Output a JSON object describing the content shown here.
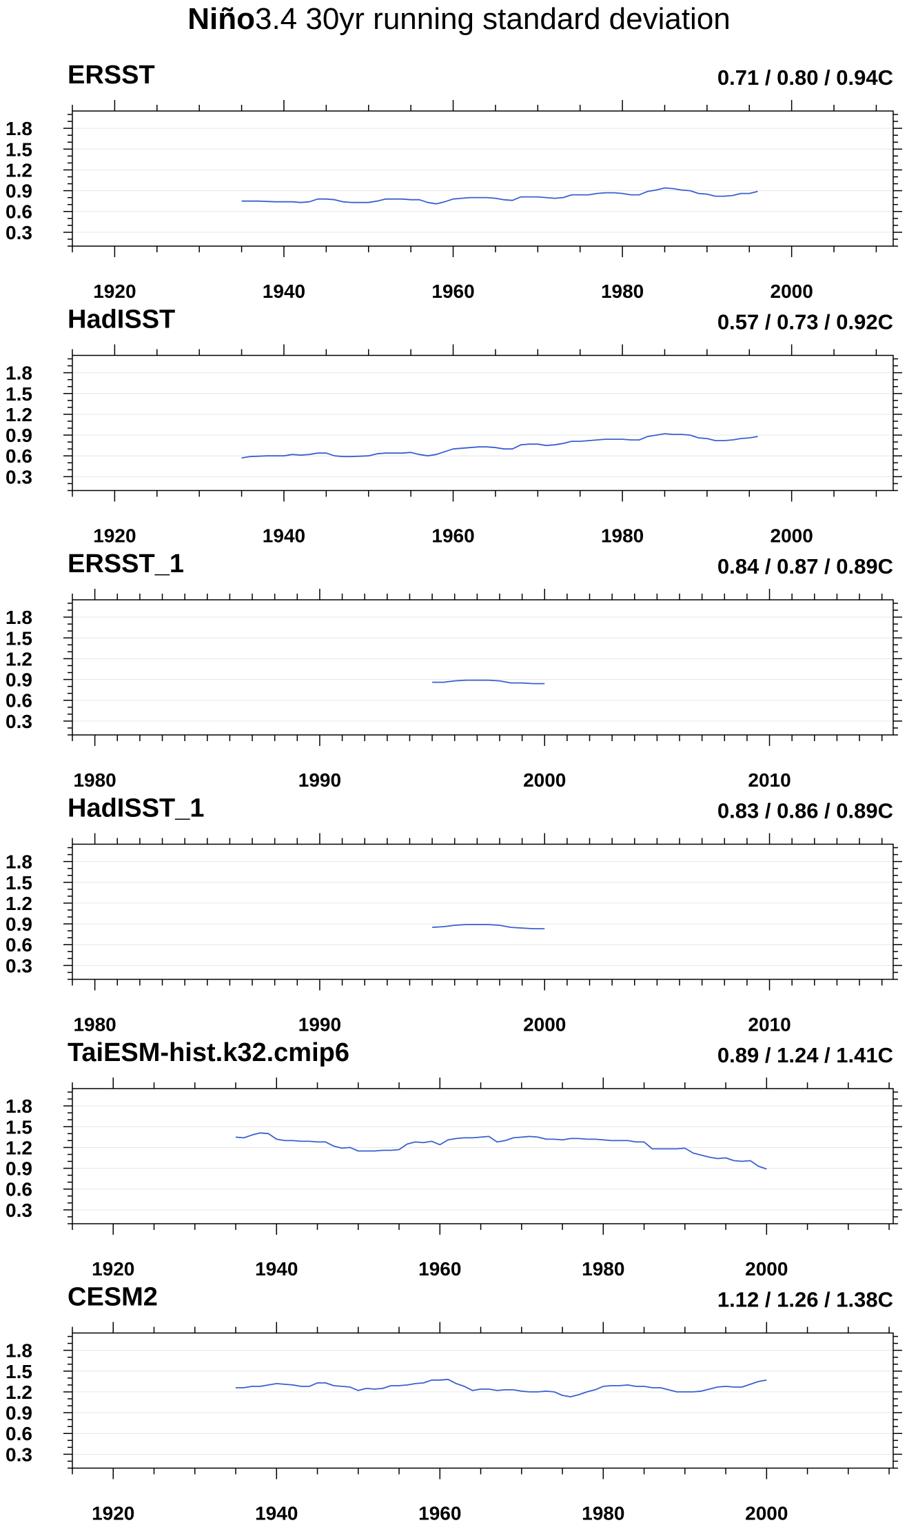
{
  "figure_title": "Niño3.4 30yr running standard deviation",
  "colors": {
    "line": "#3a5fd0",
    "frame": "#000000",
    "grid": "#e6e6e6"
  },
  "chart_data": [
    {
      "type": "line",
      "title": "ERSST",
      "stats": "0.71 / 0.80 / 0.94C",
      "xlim": [
        1915,
        2012
      ],
      "xticks": [
        1920,
        1940,
        1960,
        1980,
        2000
      ],
      "xminor": 5,
      "ylim": [
        0.1,
        2.05
      ],
      "yticks": [
        0.3,
        0.6,
        0.9,
        1.2,
        1.5,
        1.8
      ],
      "grid": true,
      "x": [
        1935,
        1937,
        1939,
        1941,
        1942,
        1943,
        1944,
        1945,
        1946,
        1947,
        1948,
        1949,
        1950,
        1951,
        1952,
        1953,
        1954,
        1955,
        1956,
        1957,
        1958,
        1959,
        1960,
        1961,
        1962,
        1963,
        1964,
        1965,
        1966,
        1967,
        1968,
        1969,
        1970,
        1971,
        1972,
        1973,
        1974,
        1975,
        1976,
        1977,
        1978,
        1979,
        1980,
        1981,
        1982,
        1983,
        1984,
        1985,
        1986,
        1987,
        1988,
        1989,
        1990,
        1991,
        1992,
        1993,
        1994,
        1995,
        1996
      ],
      "y": [
        0.75,
        0.75,
        0.74,
        0.74,
        0.73,
        0.74,
        0.78,
        0.78,
        0.77,
        0.74,
        0.73,
        0.73,
        0.73,
        0.75,
        0.78,
        0.78,
        0.78,
        0.77,
        0.77,
        0.73,
        0.71,
        0.74,
        0.78,
        0.79,
        0.8,
        0.8,
        0.8,
        0.79,
        0.77,
        0.76,
        0.81,
        0.81,
        0.81,
        0.8,
        0.79,
        0.8,
        0.84,
        0.84,
        0.84,
        0.86,
        0.87,
        0.87,
        0.86,
        0.84,
        0.84,
        0.89,
        0.91,
        0.94,
        0.93,
        0.91,
        0.9,
        0.86,
        0.85,
        0.82,
        0.82,
        0.83,
        0.86,
        0.86,
        0.89
      ]
    },
    {
      "type": "line",
      "title": "HadISST",
      "stats": "0.57 / 0.73 / 0.92C",
      "xlim": [
        1915,
        2012
      ],
      "xticks": [
        1920,
        1940,
        1960,
        1980,
        2000
      ],
      "xminor": 5,
      "ylim": [
        0.1,
        2.05
      ],
      "yticks": [
        0.3,
        0.6,
        0.9,
        1.2,
        1.5,
        1.8
      ],
      "grid": true,
      "x": [
        1935,
        1936,
        1938,
        1940,
        1941,
        1942,
        1943,
        1944,
        1945,
        1946,
        1947,
        1948,
        1950,
        1951,
        1952,
        1953,
        1954,
        1955,
        1956,
        1957,
        1958,
        1959,
        1960,
        1961,
        1962,
        1963,
        1964,
        1965,
        1966,
        1967,
        1968,
        1969,
        1970,
        1971,
        1972,
        1973,
        1974,
        1975,
        1976,
        1977,
        1978,
        1979,
        1980,
        1981,
        1982,
        1983,
        1984,
        1985,
        1986,
        1987,
        1988,
        1989,
        1990,
        1991,
        1992,
        1993,
        1994,
        1995,
        1996
      ],
      "y": [
        0.57,
        0.59,
        0.6,
        0.6,
        0.62,
        0.61,
        0.62,
        0.64,
        0.64,
        0.6,
        0.59,
        0.59,
        0.6,
        0.63,
        0.64,
        0.64,
        0.64,
        0.65,
        0.62,
        0.6,
        0.62,
        0.66,
        0.7,
        0.71,
        0.72,
        0.73,
        0.73,
        0.72,
        0.7,
        0.7,
        0.76,
        0.77,
        0.77,
        0.75,
        0.76,
        0.78,
        0.81,
        0.81,
        0.82,
        0.83,
        0.84,
        0.84,
        0.84,
        0.83,
        0.83,
        0.88,
        0.9,
        0.92,
        0.91,
        0.91,
        0.9,
        0.86,
        0.85,
        0.82,
        0.82,
        0.83,
        0.85,
        0.86,
        0.88
      ]
    },
    {
      "type": "line",
      "title": "ERSST_1",
      "stats": "0.84 / 0.87 / 0.89C",
      "xlim": [
        1979,
        2015.5
      ],
      "xticks": [
        1980,
        1990,
        2000,
        2010
      ],
      "xminor": 1,
      "ylim": [
        0.1,
        2.05
      ],
      "yticks": [
        0.3,
        0.6,
        0.9,
        1.2,
        1.5,
        1.8
      ],
      "grid": true,
      "x": [
        1995,
        1995.5,
        1996,
        1996.5,
        1997,
        1997.5,
        1998,
        1998.5,
        1999,
        1999.5,
        2000
      ],
      "y": [
        0.86,
        0.86,
        0.88,
        0.89,
        0.89,
        0.89,
        0.88,
        0.85,
        0.85,
        0.84,
        0.84
      ]
    },
    {
      "type": "line",
      "title": "HadISST_1",
      "stats": "0.83 / 0.86 / 0.89C",
      "xlim": [
        1979,
        2015.5
      ],
      "xticks": [
        1980,
        1990,
        2000,
        2010
      ],
      "xminor": 1,
      "ylim": [
        0.1,
        2.05
      ],
      "yticks": [
        0.3,
        0.6,
        0.9,
        1.2,
        1.5,
        1.8
      ],
      "grid": true,
      "x": [
        1995,
        1995.5,
        1996,
        1996.5,
        1997,
        1997.5,
        1998,
        1998.5,
        1999,
        1999.5,
        2000
      ],
      "y": [
        0.85,
        0.86,
        0.88,
        0.89,
        0.89,
        0.89,
        0.88,
        0.85,
        0.84,
        0.83,
        0.83
      ]
    },
    {
      "type": "line",
      "title": "TaiESM-hist.k32.cmip6",
      "stats": "0.89 / 1.24 / 1.41C",
      "xlim": [
        1915,
        2015.5
      ],
      "xticks": [
        1920,
        1940,
        1960,
        1980,
        2000
      ],
      "xminor": 5,
      "ylim": [
        0.1,
        2.05
      ],
      "yticks": [
        0.3,
        0.6,
        0.9,
        1.2,
        1.5,
        1.8
      ],
      "grid": true,
      "x": [
        1935,
        1936,
        1937,
        1938,
        1939,
        1940,
        1941,
        1942,
        1943,
        1944,
        1945,
        1946,
        1947,
        1948,
        1949,
        1950,
        1951,
        1952,
        1953,
        1954,
        1955,
        1956,
        1957,
        1958,
        1959,
        1960,
        1961,
        1962,
        1963,
        1964,
        1965,
        1966,
        1967,
        1968,
        1969,
        1970,
        1971,
        1972,
        1973,
        1974,
        1975,
        1976,
        1977,
        1978,
        1979,
        1980,
        1981,
        1982,
        1983,
        1984,
        1985,
        1986,
        1987,
        1988,
        1989,
        1990,
        1991,
        1992,
        1993,
        1994,
        1995,
        1996,
        1997,
        1998,
        1999,
        2000
      ],
      "y": [
        1.35,
        1.34,
        1.38,
        1.41,
        1.4,
        1.32,
        1.3,
        1.3,
        1.29,
        1.29,
        1.28,
        1.28,
        1.22,
        1.19,
        1.2,
        1.15,
        1.15,
        1.15,
        1.16,
        1.16,
        1.17,
        1.25,
        1.28,
        1.27,
        1.29,
        1.24,
        1.31,
        1.33,
        1.34,
        1.34,
        1.35,
        1.36,
        1.28,
        1.3,
        1.34,
        1.35,
        1.36,
        1.35,
        1.32,
        1.32,
        1.31,
        1.33,
        1.33,
        1.32,
        1.32,
        1.31,
        1.3,
        1.3,
        1.3,
        1.28,
        1.28,
        1.18,
        1.18,
        1.18,
        1.18,
        1.19,
        1.12,
        1.09,
        1.06,
        1.04,
        1.05,
        1.01,
        1.0,
        1.01,
        0.93,
        0.89
      ]
    },
    {
      "type": "line",
      "title": "CESM2",
      "stats": "1.12 / 1.26 / 1.38C",
      "xlim": [
        1915,
        2015.5
      ],
      "xticks": [
        1920,
        1940,
        1960,
        1980,
        2000
      ],
      "xminor": 5,
      "ylim": [
        0.1,
        2.05
      ],
      "yticks": [
        0.3,
        0.6,
        0.9,
        1.2,
        1.5,
        1.8
      ],
      "grid": true,
      "x": [
        1935,
        1936,
        1937,
        1938,
        1939,
        1940,
        1941,
        1942,
        1943,
        1944,
        1945,
        1946,
        1947,
        1948,
        1949,
        1950,
        1951,
        1952,
        1953,
        1954,
        1955,
        1956,
        1957,
        1958,
        1959,
        1960,
        1961,
        1962,
        1963,
        1964,
        1965,
        1966,
        1967,
        1968,
        1969,
        1970,
        1971,
        1972,
        1973,
        1974,
        1975,
        1976,
        1977,
        1978,
        1979,
        1980,
        1981,
        1982,
        1983,
        1984,
        1985,
        1986,
        1987,
        1988,
        1989,
        1990,
        1991,
        1992,
        1993,
        1994,
        1995,
        1996,
        1997,
        1998,
        1999,
        2000
      ],
      "y": [
        1.26,
        1.26,
        1.28,
        1.28,
        1.3,
        1.32,
        1.31,
        1.3,
        1.28,
        1.28,
        1.33,
        1.33,
        1.29,
        1.28,
        1.27,
        1.22,
        1.25,
        1.24,
        1.25,
        1.29,
        1.29,
        1.3,
        1.32,
        1.33,
        1.37,
        1.37,
        1.38,
        1.32,
        1.28,
        1.22,
        1.24,
        1.24,
        1.22,
        1.23,
        1.23,
        1.21,
        1.2,
        1.2,
        1.21,
        1.2,
        1.15,
        1.13,
        1.16,
        1.2,
        1.23,
        1.28,
        1.29,
        1.29,
        1.3,
        1.28,
        1.28,
        1.26,
        1.26,
        1.23,
        1.2,
        1.2,
        1.2,
        1.21,
        1.24,
        1.27,
        1.28,
        1.27,
        1.27,
        1.31,
        1.35,
        1.37
      ]
    }
  ]
}
